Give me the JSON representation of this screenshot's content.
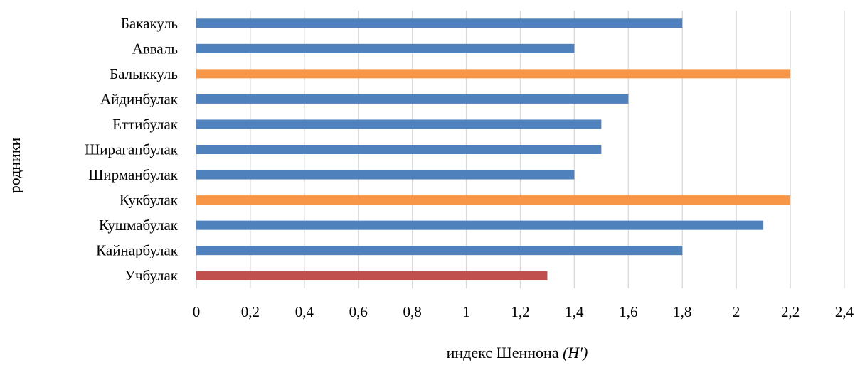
{
  "chart_data": {
    "type": "bar",
    "orientation": "horizontal",
    "categories": [
      "Бакакуль",
      "Авваль",
      "Балыккуль",
      "Айдинбулак",
      "Еттибулак",
      "Шираганбулак",
      "Ширманбулак",
      "Кукбулак",
      "Кушмабулак",
      "Кайнарбулак",
      "Учбулак"
    ],
    "values": [
      1.8,
      1.4,
      2.2,
      1.6,
      1.5,
      1.5,
      1.4,
      2.2,
      2.1,
      1.8,
      1.3
    ],
    "bar_colors": [
      "#4f81bd",
      "#4f81bd",
      "#f79646",
      "#4f81bd",
      "#4f81bd",
      "#4f81bd",
      "#4f81bd",
      "#f79646",
      "#4f81bd",
      "#4f81bd",
      "#c0504d"
    ],
    "xlim": [
      0,
      2.4
    ],
    "xticks": [
      0,
      0.2,
      0.4,
      0.6,
      0.8,
      1,
      1.2,
      1.4,
      1.6,
      1.8,
      2,
      2.2,
      2.4
    ],
    "xtick_labels": [
      "0",
      "0,2",
      "0,4",
      "0,6",
      "0,8",
      "1",
      "1,2",
      "1,4",
      "1,6",
      "1,8",
      "2",
      "2,2",
      "2,4"
    ],
    "xlabel": "индекс Шеннона",
    "xlabel_italic": "(H')",
    "ylabel": "родники",
    "grid": "vertical",
    "legend": "none"
  }
}
